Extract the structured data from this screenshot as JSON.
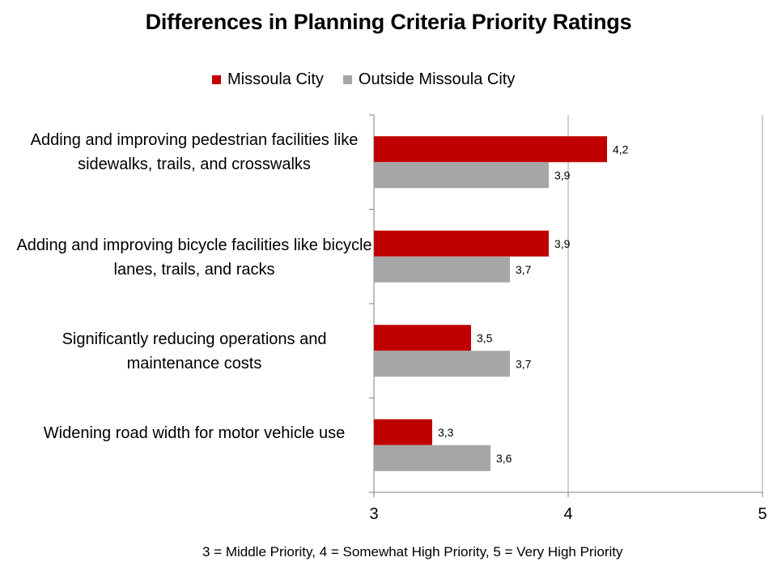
{
  "chart_data": {
    "type": "bar",
    "orientation": "horizontal",
    "title": "Differences in Planning Criteria Priority Ratings",
    "categories": [
      "Adding and improving pedestrian facilities like sidewalks, trails, and crosswalks",
      "Adding and improving bicycle facilities like bicycle lanes, trails, and racks",
      "Significantly reducing operations and maintenance costs",
      "Widening road width for motor vehicle use"
    ],
    "series": [
      {
        "name": "Missoula City",
        "color": "#c00000",
        "values": [
          4.2,
          3.9,
          3.5,
          3.3
        ],
        "labels": [
          "4,2",
          "3,9",
          "3,5",
          "3,3"
        ]
      },
      {
        "name": "Outside Missoula City",
        "color": "#a6a6a6",
        "values": [
          3.9,
          3.7,
          3.7,
          3.6
        ],
        "labels": [
          "3,9",
          "3,7",
          "3,7",
          "3,6"
        ]
      }
    ],
    "xlim": [
      3,
      5
    ],
    "xticks": [
      "3",
      "4",
      "5"
    ],
    "grid": "vertical major gridlines",
    "legend_position": "top",
    "footnote": "3 = Middle Priority, 4 = Somewhat High Priority, 5 = Very High Priority"
  }
}
